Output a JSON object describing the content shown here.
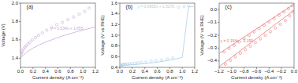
{
  "chart_data": [
    {
      "type": "scatter",
      "title": "(a)",
      "xlabel": "Current density (A cm⁻²)",
      "ylabel": "Voltage (V)",
      "xlim": [
        0,
        1.2
      ],
      "ylim": [
        1.3,
        2.0
      ],
      "xticks": [
        {
          "value": 0,
          "label": "0.0"
        },
        0.2,
        0.4,
        0.6,
        0.8,
        {
          "value": 1.0,
          "label": "1.0"
        },
        1.2
      ],
      "yticks": [
        1.4,
        1.6,
        1.8,
        {
          "value": 2.0,
          "label": "2.0"
        }
      ],
      "annotations": [
        {
          "text": "y = 0.534x + 1.655",
          "x": 0.48,
          "y": 1.72,
          "color": "#c9a8d6"
        }
      ],
      "series": [
        {
          "type": "line",
          "color": "#c9a8d6",
          "x": [
            0.0,
            0.1,
            0.2,
            0.3,
            0.4,
            0.5,
            0.6,
            0.7,
            0.8,
            0.9,
            1.0,
            1.1,
            1.2
          ],
          "values": [
            1.4,
            1.465,
            1.51,
            1.545,
            1.575,
            1.6,
            1.625,
            1.648,
            1.668,
            1.688,
            1.706,
            1.724,
            1.742
          ]
        },
        {
          "type": "scatter",
          "color": "#c9a8d6",
          "marker": "circle",
          "x": [
            0.01,
            0.02,
            0.03,
            0.05,
            0.07,
            0.09,
            0.12,
            0.15,
            0.19,
            0.24,
            0.29,
            0.35,
            0.42,
            0.5,
            0.58,
            0.67,
            0.76,
            0.85,
            0.94,
            1.03,
            1.1
          ],
          "values": [
            1.44,
            1.46,
            1.475,
            1.5,
            1.52,
            1.535,
            1.555,
            1.575,
            1.6,
            1.625,
            1.65,
            1.675,
            1.705,
            1.735,
            1.765,
            1.79,
            1.82,
            1.85,
            1.88,
            1.91,
            1.945
          ]
        }
      ]
    },
    {
      "type": "scatter",
      "title": "(b)",
      "xlabel": "Current density (A cm⁻²)",
      "ylabel": "Voltage (V vs RHE)",
      "xlim": [
        0,
        1.2
      ],
      "ylim": [
        0.4,
        1.6
      ],
      "xticks": [
        {
          "value": 0,
          "label": "0.0"
        },
        0.2,
        0.4,
        0.6,
        0.8,
        {
          "value": 1.0,
          "label": "1.0"
        },
        1.2
      ],
      "yticks": [
        0.4,
        0.6,
        0.8,
        {
          "value": 1.0,
          "label": "1.0"
        },
        1.2,
        1.4,
        1.6
      ],
      "annotations": [
        {
          "text": "y = 0.0665x + 1.5275",
          "x": 0.28,
          "y": 1.535,
          "color": "#a8cfe8"
        }
      ],
      "series": [
        {
          "type": "line",
          "color": "#a8cfe8",
          "x": [
            0.0,
            0.1,
            0.2,
            0.3,
            0.4,
            0.5,
            0.6,
            0.7,
            0.8,
            0.9,
            1.0,
            1.1,
            1.2
          ],
          "values": [
            0.432,
            0.44,
            0.448,
            0.458,
            0.469,
            0.482,
            0.497,
            0.515,
            0.535,
            0.558,
            0.585,
            1.53,
            1.54
          ]
        },
        {
          "type": "scatter",
          "color": "#a8cfe8",
          "marker": "circle",
          "x": [
            0.01,
            0.02,
            0.03,
            0.05,
            0.07,
            0.09,
            0.12,
            0.15,
            0.19,
            0.24,
            0.29,
            0.35,
            0.42,
            0.5,
            0.58,
            0.67,
            0.76,
            0.85,
            0.94,
            1.03,
            1.1
          ],
          "values": [
            0.435,
            0.44,
            0.445,
            0.45,
            0.455,
            0.458,
            0.462,
            0.466,
            0.472,
            0.478,
            0.485,
            0.493,
            0.502,
            0.513,
            0.525,
            0.539,
            0.555,
            0.572,
            1.526,
            1.538,
            1.548
          ]
        }
      ]
    },
    {
      "type": "scatter",
      "title": "(c)",
      "xlabel": "Current density (A cm⁻²)",
      "ylabel": "Voltage (V vs RHE)",
      "xlim": [
        -1.2,
        0
      ],
      "ylim": [
        -0.45,
        0.05
      ],
      "xticks": [
        {
          "value": -1.2,
          "label": "−1.2"
        },
        {
          "value": -1.0,
          "label": "−1.0"
        },
        {
          "value": -0.8,
          "label": "−0.8"
        },
        {
          "value": -0.6,
          "label": "−0.6"
        },
        {
          "value": -0.4,
          "label": "−0.4"
        },
        {
          "value": -0.2,
          "label": "−0.2"
        },
        {
          "value": 0,
          "label": "0.0"
        }
      ],
      "yticks": [
        {
          "value": -0.4,
          "label": "−0.4"
        },
        {
          "value": -0.3,
          "label": "−0.3"
        },
        {
          "value": -0.2,
          "label": "−0.2"
        },
        {
          "value": -0.1,
          "label": "−0.1"
        },
        {
          "value": 0.0,
          "label": "0.0"
        }
      ],
      "annotations": [
        {
          "text": "y = 0.154x − 0.159",
          "x": -1.18,
          "y": -0.245,
          "color": "#e87878"
        }
      ],
      "series": [
        {
          "type": "line",
          "color": "#e87878",
          "x": [
            -1.2,
            0.0
          ],
          "values": [
            -0.444,
            -0.006
          ]
        },
        {
          "type": "line",
          "color": "#e87878",
          "x": [
            -1.2,
            -0.0
          ],
          "values": [
            -0.342,
            0.042
          ]
        },
        {
          "type": "scatter",
          "color": "#e87878",
          "marker": "circle",
          "x": [
            -1.1,
            -1.02,
            -0.94,
            -0.86,
            -0.78,
            -0.7,
            -0.62,
            -0.54,
            -0.46,
            -0.38,
            -0.3,
            -0.22,
            -0.14,
            -0.07,
            -0.02
          ],
          "values": [
            -0.425,
            -0.395,
            -0.368,
            -0.34,
            -0.313,
            -0.285,
            -0.257,
            -0.228,
            -0.2,
            -0.172,
            -0.143,
            -0.114,
            -0.085,
            -0.05,
            -0.018
          ]
        },
        {
          "type": "scatter",
          "color": "#e87878",
          "marker": "circle",
          "x": [
            -1.12,
            -1.04,
            -0.96,
            -0.88,
            -0.8,
            -0.72,
            -0.64,
            -0.56,
            -0.48,
            -0.4,
            -0.32,
            -0.24,
            -0.16,
            -0.09,
            -0.03
          ],
          "values": [
            -0.33,
            -0.303,
            -0.278,
            -0.252,
            -0.226,
            -0.2,
            -0.174,
            -0.148,
            -0.122,
            -0.096,
            -0.07,
            -0.044,
            -0.018,
            0.008,
            0.03
          ]
        }
      ]
    }
  ]
}
